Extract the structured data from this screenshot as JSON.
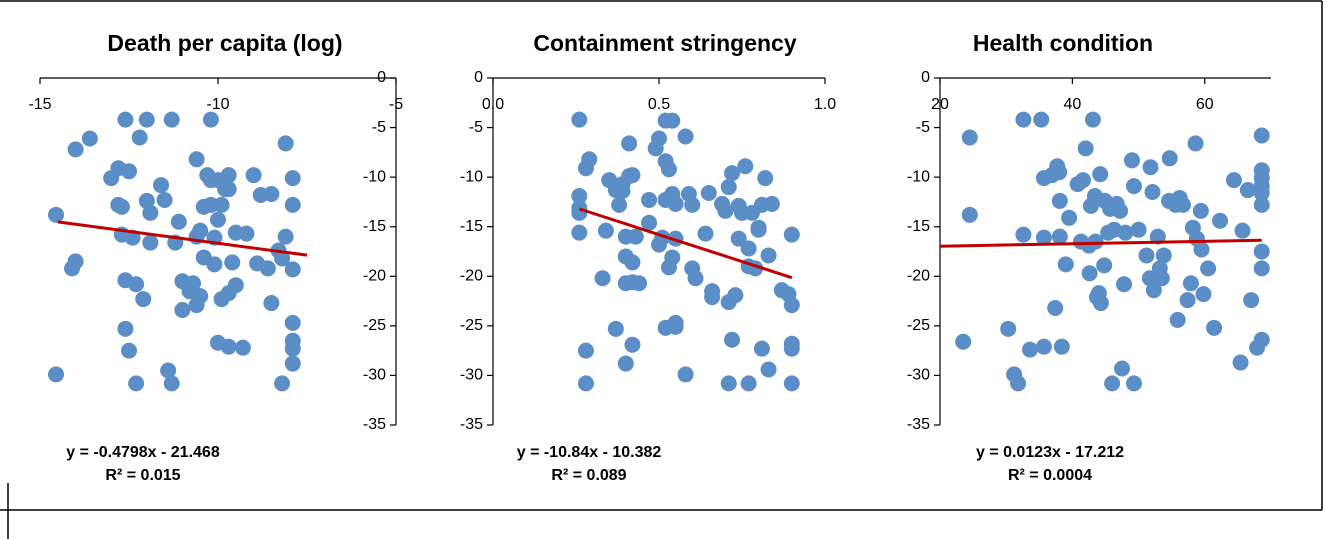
{
  "chart_data": [
    {
      "type": "scatter",
      "title": "Death per capita (log)",
      "color": "#5b8ec6",
      "xlim": [
        -15,
        -5
      ],
      "ylim": [
        -35,
        0
      ],
      "xticks": [
        -15,
        -10,
        -5
      ],
      "yticks": [
        0,
        -5,
        -10,
        -15,
        -20,
        -25,
        -30,
        -35
      ],
      "x": [
        -14.55,
        -14.55,
        -14.1,
        -14.0,
        -14.0,
        -13.6,
        -13.0,
        -12.8,
        -12.8,
        -12.7,
        -12.6,
        -12.6,
        -12.6,
        -12.5,
        -12.5,
        -12.7,
        -12.4,
        -12.3,
        -12.3,
        -12.2,
        -12.0,
        -12.1,
        -12.0,
        -11.9,
        -11.9,
        -11.6,
        -11.5,
        -11.4,
        -11.3,
        -11.3,
        -11.2,
        -11.1,
        -11.0,
        -11.0,
        -10.8,
        -10.7,
        -10.6,
        -10.6,
        -10.6,
        -10.5,
        -10.5,
        -10.4,
        -10.4,
        -10.3,
        -10.2,
        -10.2,
        -10.2,
        -10.1,
        -10.1,
        -10.0,
        -10.0,
        -10.0,
        -9.9,
        -9.9,
        -9.8,
        -9.7,
        -9.7,
        -9.7,
        -9.7,
        -9.6,
        -9.5,
        -9.5,
        -9.3,
        -9.2,
        -9.0,
        -8.9,
        -8.8,
        -8.6,
        -8.5,
        -8.5,
        -8.3,
        -8.2,
        -8.2,
        -8.1,
        -8.1,
        -7.9,
        -7.9,
        -7.9,
        -7.9,
        -7.9,
        -7.9,
        -7.9
      ],
      "y": [
        -13.8,
        -29.9,
        -19.2,
        -18.5,
        -7.2,
        -6.1,
        -10.1,
        -9.1,
        -12.8,
        -13.0,
        -4.2,
        -25.3,
        -20.4,
        -9.4,
        -27.5,
        -15.8,
        -16.1,
        -20.8,
        -30.8,
        -6.0,
        -4.2,
        -22.3,
        -12.4,
        -13.6,
        -16.6,
        -10.8,
        -12.3,
        -29.5,
        -4.2,
        -30.8,
        -16.6,
        -14.5,
        -20.5,
        -23.4,
        -21.5,
        -20.7,
        -16.0,
        -22.9,
        -8.2,
        -22.0,
        -15.4,
        -18.1,
        -13.0,
        -9.8,
        -4.2,
        -12.8,
        -10.3,
        -16.1,
        -18.8,
        -26.7,
        -10.3,
        -14.3,
        -12.8,
        -22.3,
        -11.2,
        -9.8,
        -11.2,
        -21.7,
        -27.1,
        -18.6,
        -20.9,
        -15.6,
        -27.2,
        -15.7,
        -9.8,
        -18.7,
        -11.8,
        -19.2,
        -22.7,
        -11.7,
        -17.4,
        -30.8,
        -18.2,
        -16.0,
        -6.6,
        -10.1,
        -12.8,
        -19.3,
        -24.7,
        -26.5,
        -27.3,
        -28.8
      ],
      "trendline": {
        "equation": "y = -0.4798x - 21.468",
        "r_squared": "R² = 0.015",
        "slope": -0.4798,
        "intercept": -21.468,
        "x_range": [
          -14.5,
          -7.5
        ],
        "color": "#c00000"
      }
    },
    {
      "type": "scatter",
      "title": "Containment stringency",
      "color": "#5b8ec6",
      "xlim": [
        0,
        1
      ],
      "ylim": [
        -35,
        0
      ],
      "xticks": [
        {
          "value": 0,
          "label": "0.0"
        },
        0.5,
        {
          "value": 1,
          "label": "1.0"
        }
      ],
      "yticks": [
        0,
        -5,
        -10,
        -15,
        -20,
        -25,
        -30,
        -35
      ],
      "x": [
        0.26,
        0.26,
        0.26,
        0.26,
        0.26,
        0.28,
        0.28,
        0.28,
        0.29,
        0.33,
        0.34,
        0.35,
        0.37,
        0.37,
        0.38,
        0.39,
        0.39,
        0.4,
        0.4,
        0.4,
        0.4,
        0.41,
        0.41,
        0.42,
        0.42,
        0.42,
        0.42,
        0.43,
        0.44,
        0.47,
        0.47,
        0.49,
        0.5,
        0.5,
        0.51,
        0.52,
        0.52,
        0.52,
        0.52,
        0.53,
        0.53,
        0.54,
        0.54,
        0.54,
        0.55,
        0.55,
        0.55,
        0.55,
        0.58,
        0.58,
        0.59,
        0.6,
        0.6,
        0.61,
        0.64,
        0.65,
        0.66,
        0.66,
        0.69,
        0.7,
        0.71,
        0.71,
        0.71,
        0.72,
        0.72,
        0.73,
        0.74,
        0.74,
        0.75,
        0.76,
        0.77,
        0.77,
        0.77,
        0.78,
        0.79,
        0.8,
        0.8,
        0.81,
        0.81,
        0.82,
        0.83,
        0.83,
        0.84,
        0.87,
        0.89,
        0.9,
        0.9,
        0.9,
        0.9,
        0.9
      ],
      "y": [
        -4.2,
        -11.9,
        -13.1,
        -13.6,
        -15.6,
        -9.1,
        -27.5,
        -30.8,
        -8.2,
        -20.2,
        -15.4,
        -10.3,
        -11.3,
        -25.3,
        -12.8,
        -10.7,
        -11.4,
        -18.0,
        -20.7,
        -16.0,
        -28.8,
        -9.9,
        -6.6,
        -9.8,
        -20.6,
        -26.9,
        -18.6,
        -16.0,
        -20.7,
        -14.6,
        -12.3,
        -7.1,
        -6.1,
        -16.8,
        -16.1,
        -12.3,
        -25.2,
        -4.3,
        -8.4,
        -9.2,
        -19.1,
        -18.1,
        -4.3,
        -11.7,
        -24.7,
        -16.2,
        -25.1,
        -12.7,
        -5.9,
        -29.9,
        -11.7,
        -19.2,
        -12.8,
        -20.2,
        -15.7,
        -11.6,
        -21.5,
        -22.1,
        -12.7,
        -13.4,
        -30.8,
        -11.0,
        -22.6,
        -9.6,
        -26.4,
        -21.9,
        -12.9,
        -16.2,
        -13.6,
        -8.9,
        -30.8,
        -19.0,
        -17.2,
        -13.6,
        -19.2,
        -15.1,
        -15.3,
        -27.3,
        -12.8,
        -10.1,
        -17.9,
        -29.4,
        -12.7,
        -21.4,
        -21.8,
        -30.8,
        -15.8,
        -26.8,
        -27.3,
        -22.9
      ],
      "trendline": {
        "equation": "y = -10.84x - 10.382",
        "r_squared": "R² = 0.089",
        "slope": -10.84,
        "intercept": -10.382,
        "x_range": [
          0.26,
          0.9
        ],
        "color": "#c00000"
      }
    },
    {
      "type": "scatter",
      "title": "Health condition",
      "color": "#5b8ec6",
      "xlim": [
        20,
        70
      ],
      "ylim": [
        -35,
        0
      ],
      "xticks": [
        20,
        40,
        60
      ],
      "yticks": [
        0,
        -5,
        -10,
        -15,
        -20,
        -25,
        -30,
        -35
      ],
      "x": [
        23.5,
        24.5,
        24.5,
        30.3,
        31.2,
        31.8,
        32.6,
        32.6,
        33.6,
        35.3,
        35.7,
        35.7,
        35.7,
        36.9,
        37.4,
        37.7,
        38.0,
        38.1,
        38.1,
        38.4,
        39.0,
        39.5,
        40.8,
        41.3,
        41.6,
        42.0,
        42.5,
        42.6,
        42.8,
        43.1,
        43.4,
        43.5,
        43.7,
        44.0,
        44.2,
        44.3,
        44.8,
        44.9,
        45.4,
        45.7,
        46.0,
        46.3,
        46.7,
        47.2,
        47.5,
        47.8,
        48.0,
        49.0,
        49.3,
        49.3,
        50.0,
        51.2,
        51.7,
        51.8,
        52.1,
        52.3,
        52.9,
        53.2,
        53.5,
        53.8,
        54.6,
        54.7,
        55.6,
        55.9,
        56.2,
        56.7,
        57.4,
        57.9,
        58.2,
        58.6,
        58.8,
        59.4,
        59.5,
        59.8,
        60.5,
        61.4,
        62.3,
        64.4,
        65.4,
        65.7,
        66.5,
        67.0,
        67.9,
        68.6,
        68.6,
        68.6,
        68.6,
        68.6,
        68.6,
        68.6,
        68.6,
        68.6
      ],
      "y": [
        -26.6,
        -13.8,
        -6.0,
        -25.3,
        -29.9,
        -30.8,
        -4.2,
        -15.8,
        -27.4,
        -4.2,
        -10.1,
        -16.1,
        -27.1,
        -9.8,
        -23.2,
        -8.9,
        -9.5,
        -12.4,
        -16.0,
        -27.1,
        -18.8,
        -14.1,
        -10.7,
        -16.5,
        -10.3,
        -7.1,
        -16.9,
        -19.7,
        -12.9,
        -4.2,
        -11.9,
        -16.5,
        -22.1,
        -21.7,
        -9.7,
        -22.7,
        -18.9,
        -12.4,
        -15.6,
        -13.2,
        -30.8,
        -15.3,
        -12.7,
        -13.4,
        -29.3,
        -20.8,
        -15.6,
        -8.3,
        -10.9,
        -30.8,
        -15.3,
        -17.9,
        -20.2,
        -9.0,
        -11.5,
        -21.4,
        -16.0,
        -19.2,
        -20.2,
        -17.9,
        -12.4,
        -8.1,
        -12.8,
        -24.4,
        -12.1,
        -12.8,
        -22.4,
        -20.7,
        -15.1,
        -6.6,
        -16.2,
        -13.4,
        -17.3,
        -21.8,
        -19.2,
        -25.2,
        -14.4,
        -10.3,
        -28.7,
        -15.4,
        -11.3,
        -22.4,
        -27.2,
        -5.8,
        -9.3,
        -10.1,
        -10.9,
        -11.6,
        -12.8,
        -17.5,
        -19.2,
        -26.4
      ],
      "trendline": {
        "equation": "y = 0.0123x - 17.212",
        "r_squared": "R² = 0.0004",
        "slope": 0.0123,
        "intercept": -17.212,
        "x_range": [
          20,
          68.6
        ],
        "color": "#c00000"
      }
    }
  ]
}
